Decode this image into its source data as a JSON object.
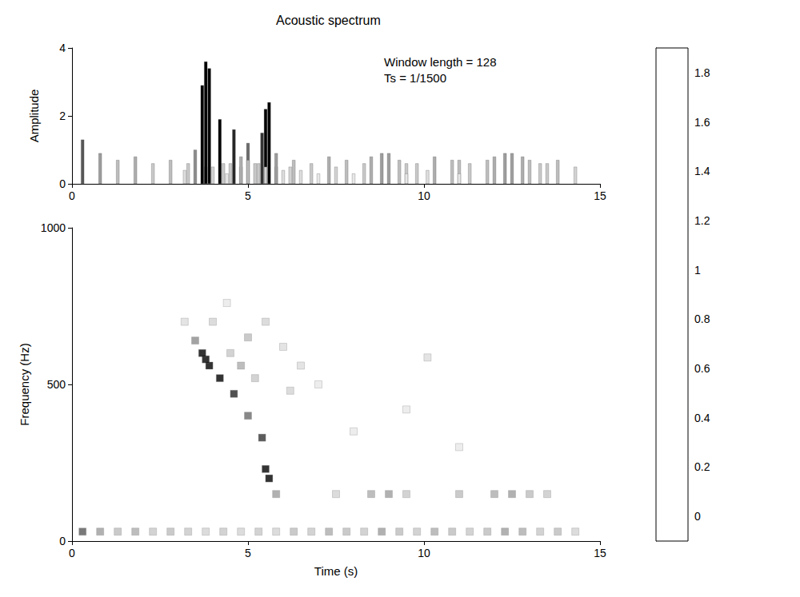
{
  "chart_data": {
    "type": "heatmap",
    "title": "Acoustic spectrum",
    "annotations": [
      "Window length = 128",
      "Ts = 1/1500"
    ],
    "x_label": "Time (s)",
    "y_label": "Frequency (Hz)",
    "z_label": "Amplitude",
    "xlim": [
      0,
      15
    ],
    "xticks": [
      0,
      5,
      10,
      15
    ],
    "ylim": [
      0,
      1000
    ],
    "yticks": [
      0,
      500,
      1000
    ],
    "zlim": [
      0,
      4
    ],
    "zticks": [
      0,
      2,
      4
    ],
    "cells": [
      [
        0.3,
        30,
        1.3
      ],
      [
        0.8,
        30,
        0.9
      ],
      [
        1.3,
        30,
        0.7
      ],
      [
        1.8,
        30,
        0.8
      ],
      [
        2.3,
        30,
        0.6
      ],
      [
        2.8,
        30,
        0.7
      ],
      [
        3.3,
        30,
        0.6
      ],
      [
        3.8,
        30,
        0.5
      ],
      [
        4.3,
        30,
        0.6
      ],
      [
        4.8,
        30,
        0.5
      ],
      [
        5.3,
        30,
        0.6
      ],
      [
        5.8,
        30,
        0.5
      ],
      [
        6.3,
        30,
        0.7
      ],
      [
        6.8,
        30,
        0.6
      ],
      [
        7.3,
        30,
        0.8
      ],
      [
        7.8,
        30,
        0.7
      ],
      [
        8.3,
        30,
        0.6
      ],
      [
        8.8,
        30,
        0.9
      ],
      [
        9.3,
        30,
        0.7
      ],
      [
        9.8,
        30,
        0.6
      ],
      [
        10.3,
        30,
        0.8
      ],
      [
        10.8,
        30,
        0.7
      ],
      [
        11.3,
        30,
        0.6
      ],
      [
        11.8,
        30,
        0.7
      ],
      [
        12.3,
        30,
        0.9
      ],
      [
        12.8,
        30,
        0.8
      ],
      [
        13.3,
        30,
        0.6
      ],
      [
        13.8,
        30,
        0.7
      ],
      [
        14.3,
        30,
        0.5
      ],
      [
        7.5,
        150,
        0.5
      ],
      [
        8.5,
        150,
        0.8
      ],
      [
        9.0,
        150,
        0.9
      ],
      [
        9.5,
        150,
        0.6
      ],
      [
        11.0,
        150,
        0.7
      ],
      [
        12.0,
        150,
        0.8
      ],
      [
        12.5,
        150,
        0.9
      ],
      [
        13.0,
        150,
        0.7
      ],
      [
        13.5,
        150,
        0.6
      ],
      [
        5.8,
        150,
        0.9
      ],
      [
        5.6,
        200,
        2.4
      ],
      [
        5.5,
        230,
        2.2
      ],
      [
        5.4,
        330,
        1.5
      ],
      [
        5.0,
        400,
        1.2
      ],
      [
        4.6,
        470,
        1.6
      ],
      [
        4.2,
        520,
        1.9
      ],
      [
        3.9,
        560,
        3.4
      ],
      [
        3.8,
        580,
        3.6
      ],
      [
        3.7,
        600,
        2.9
      ],
      [
        3.5,
        640,
        1.0
      ],
      [
        4.5,
        600,
        0.6
      ],
      [
        5.0,
        650,
        0.7
      ],
      [
        5.5,
        700,
        0.5
      ],
      [
        6.0,
        620,
        0.4
      ],
      [
        4.0,
        700,
        0.5
      ],
      [
        6.5,
        560,
        0.4
      ],
      [
        7.0,
        500,
        0.3
      ],
      [
        5.2,
        520,
        0.6
      ],
      [
        4.8,
        560,
        0.8
      ],
      [
        6.2,
        480,
        0.5
      ],
      [
        3.2,
        700,
        0.4
      ],
      [
        4.4,
        760,
        0.3
      ],
      [
        10.1,
        586,
        0.4
      ],
      [
        9.5,
        420,
        0.3
      ],
      [
        11.0,
        300,
        0.3
      ],
      [
        8.0,
        350,
        0.3
      ]
    ],
    "colorbar_lim": [
      -0.1,
      1.9
    ],
    "colorbar_ticks": [
      0,
      0.2,
      0.4,
      0.6,
      0.8,
      1,
      1.2,
      1.4,
      1.6,
      1.8
    ],
    "grid": false
  }
}
